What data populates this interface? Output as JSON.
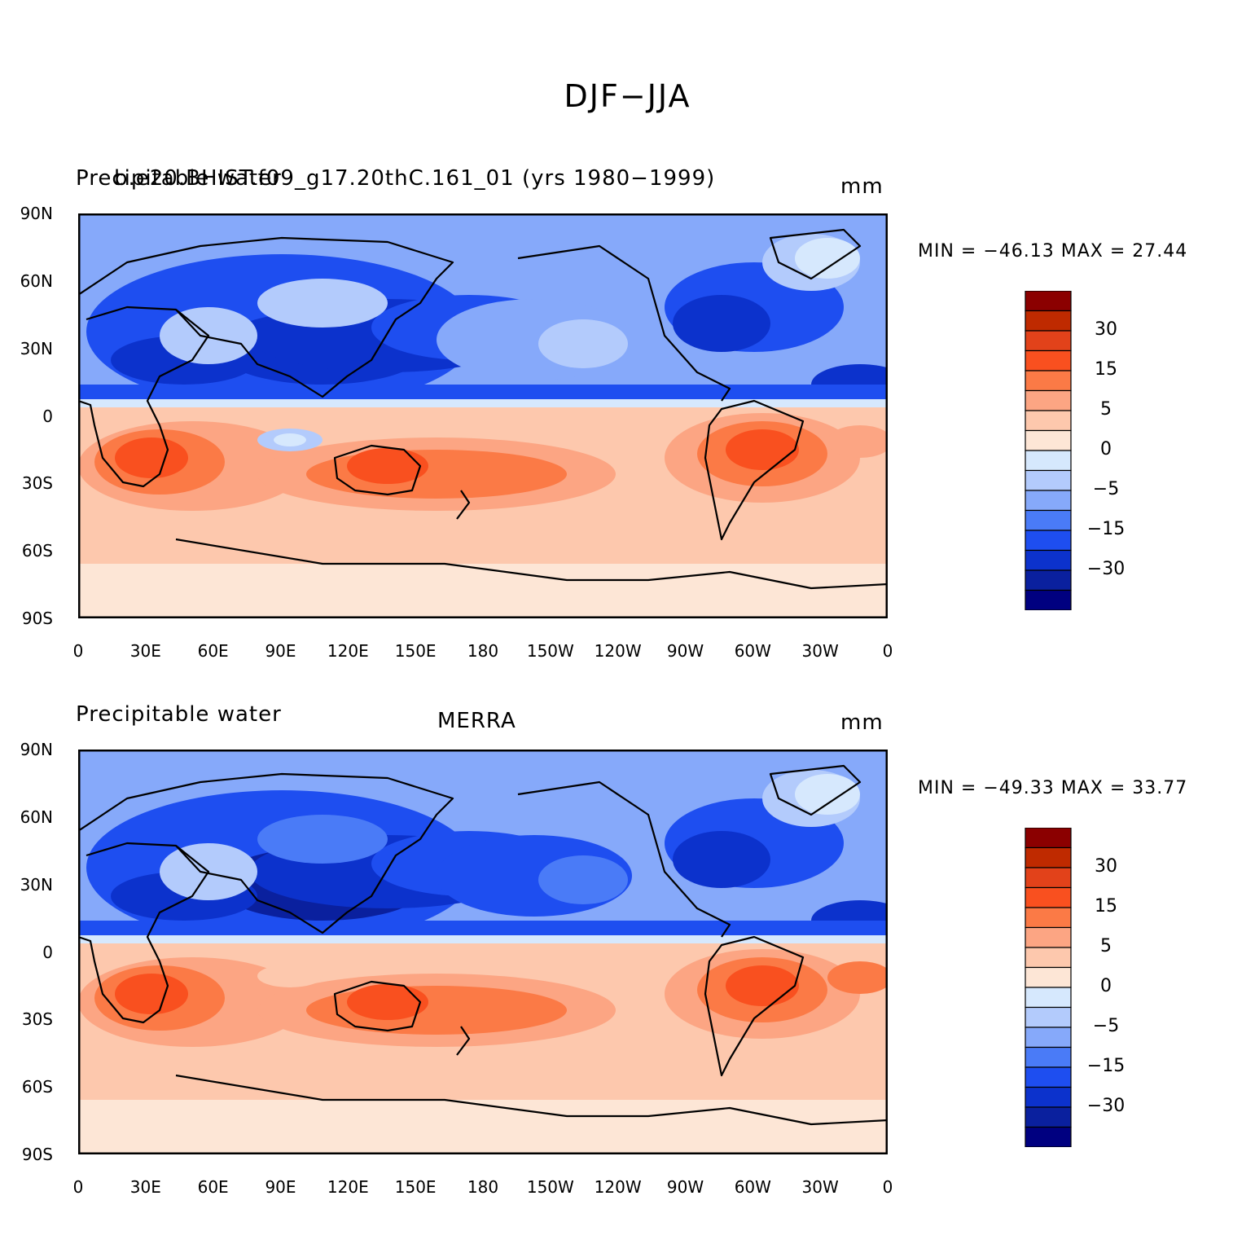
{
  "figure": {
    "title": "DJF−JJA"
  },
  "panels": [
    {
      "left_title": "Precipitable water",
      "center_title": "b.e20.BHIST.f09_g17.20thC.161_01 (yrs 1980−1999)",
      "units": "mm",
      "stats": "MIN = −46.13 MAX =   27.44"
    },
    {
      "left_title": "Precipitable water",
      "center_title": "MERRA",
      "units": "mm",
      "stats": "MIN = −49.33 MAX =   33.77"
    }
  ],
  "axes": {
    "y_ticks": [
      "90N",
      "60N",
      "30N",
      "0",
      "30S",
      "60S",
      "90S"
    ],
    "x_ticks": [
      "0",
      "30E",
      "60E",
      "90E",
      "120E",
      "150E",
      "180",
      "150W",
      "120W",
      "90W",
      "60W",
      "30W",
      "0"
    ]
  },
  "colorbar": {
    "labels": [
      "30",
      "15",
      "5",
      "0",
      "−5",
      "−15",
      "−30"
    ],
    "colors_top_to_bottom": [
      "#8b0000",
      "#bf2a00",
      "#e2421a",
      "#f9501f",
      "#fb7a46",
      "#fca583",
      "#fdc8ad",
      "#fde6d6",
      "#d6e8fd",
      "#b3cbfc",
      "#86a9fa",
      "#4a7bf7",
      "#1e4ef0",
      "#0c32cc",
      "#0a209e",
      "#000080"
    ]
  },
  "chart_data": [
    {
      "type": "heatmap",
      "title": "b.e20.BHIST.f09_g17.20thC.161_01 (yrs 1980−1999)",
      "variable": "Precipitable water",
      "units": "mm",
      "season_difference": "DJF−JJA",
      "min": -46.13,
      "max": 27.44,
      "lon_range": [
        0,
        360
      ],
      "lat_range": [
        -90,
        90
      ],
      "contour_levels": [
        -40,
        -30,
        -20,
        -15,
        -10,
        -5,
        -2,
        0,
        2,
        5,
        10,
        15,
        20,
        30,
        40
      ]
    },
    {
      "type": "heatmap",
      "title": "MERRA",
      "variable": "Precipitable water",
      "units": "mm",
      "season_difference": "DJF−JJA",
      "min": -49.33,
      "max": 33.77,
      "lon_range": [
        0,
        360
      ],
      "lat_range": [
        -90,
        90
      ],
      "contour_levels": [
        -40,
        -30,
        -20,
        -15,
        -10,
        -5,
        -2,
        0,
        2,
        5,
        10,
        15,
        20,
        30,
        40
      ]
    }
  ]
}
